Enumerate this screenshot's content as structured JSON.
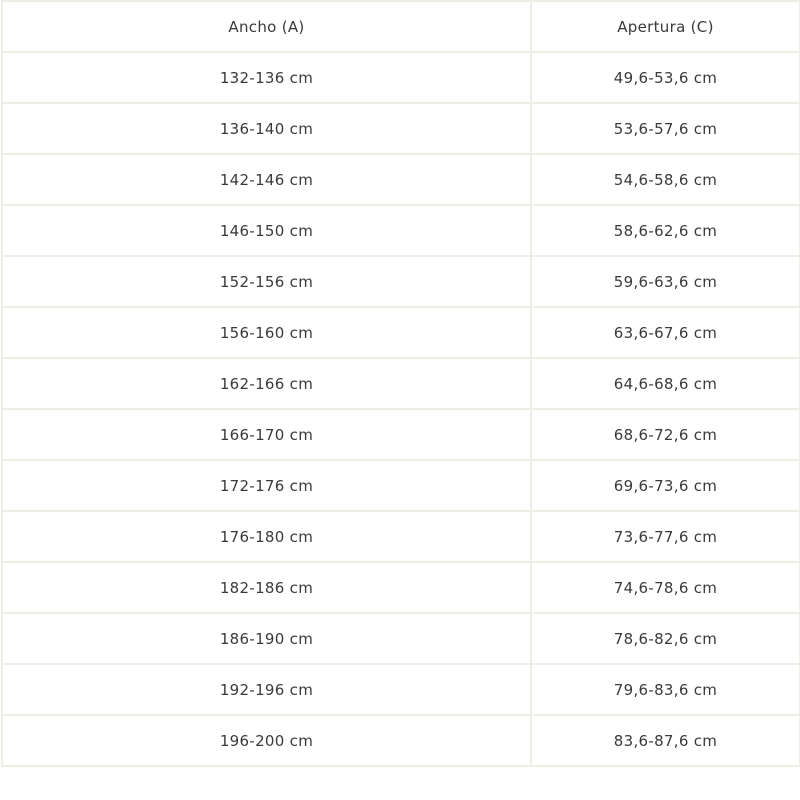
{
  "table": {
    "headers": [
      "Ancho (A)",
      "Apertura (C)"
    ],
    "rows": [
      [
        "132-136 cm",
        "49,6-53,6 cm"
      ],
      [
        "136-140 cm",
        "53,6-57,6 cm"
      ],
      [
        "142-146 cm",
        "54,6-58,6 cm"
      ],
      [
        "146-150 cm",
        "58,6-62,6 cm"
      ],
      [
        "152-156 cm",
        "59,6-63,6 cm"
      ],
      [
        "156-160 cm",
        "63,6-67,6 cm"
      ],
      [
        "162-166 cm",
        "64,6-68,6 cm"
      ],
      [
        "166-170 cm",
        "68,6-72,6 cm"
      ],
      [
        "172-176 cm",
        "69,6-73,6 cm"
      ],
      [
        "176-180 cm",
        "73,6-77,6 cm"
      ],
      [
        "182-186 cm",
        "74,6-78,6 cm"
      ],
      [
        "186-190 cm",
        "78,6-82,6 cm"
      ],
      [
        "192-196 cm",
        "79,6-83,6 cm"
      ],
      [
        "196-200 cm",
        "83,6-87,6 cm"
      ]
    ]
  },
  "colors": {
    "border": "#efeee6",
    "text": "#3a3a3a"
  }
}
